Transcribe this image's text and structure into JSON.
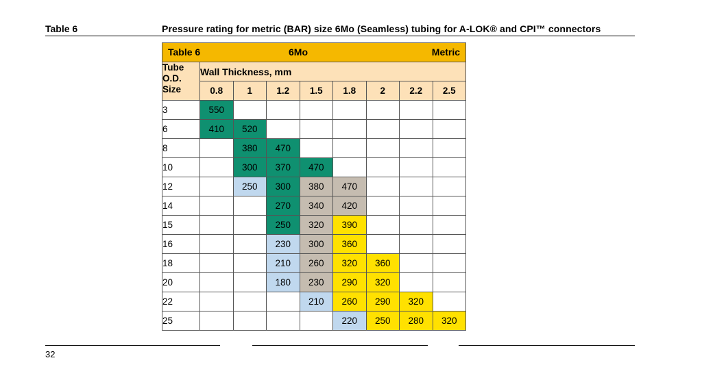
{
  "header": {
    "table_label": "Table 6",
    "title": "Pressure rating for metric (BAR) size 6Mo (Seamless) tubing for A-LOK® and CPI™ connectors"
  },
  "table": {
    "header_left": "Table 6",
    "header_mid": "6Mo",
    "header_right": "Metric",
    "row_header": "Tube O.D. Size",
    "wall_title": "Wall Thickness, mm",
    "wall_thicknesses": [
      "0.8",
      "1",
      "1.2",
      "1.5",
      "1.8",
      "2",
      "2.2",
      "2.5"
    ],
    "colors": {
      "header": "#f5b800",
      "peach": "#fde1b8",
      "green": "#0f9070",
      "blue": "#c0d8ee",
      "gray": "#c5bcb0",
      "yellow": "#ffe100"
    },
    "rows": [
      {
        "size": "3",
        "cells": [
          {
            "v": "550",
            "c": "green"
          },
          {
            "v": "",
            "c": ""
          },
          {
            "v": "",
            "c": ""
          },
          {
            "v": "",
            "c": ""
          },
          {
            "v": "",
            "c": ""
          },
          {
            "v": "",
            "c": ""
          },
          {
            "v": "",
            "c": ""
          },
          {
            "v": "",
            "c": ""
          }
        ]
      },
      {
        "size": "6",
        "cells": [
          {
            "v": "410",
            "c": "green"
          },
          {
            "v": "520",
            "c": "green"
          },
          {
            "v": "",
            "c": ""
          },
          {
            "v": "",
            "c": ""
          },
          {
            "v": "",
            "c": ""
          },
          {
            "v": "",
            "c": ""
          },
          {
            "v": "",
            "c": ""
          },
          {
            "v": "",
            "c": ""
          }
        ]
      },
      {
        "size": "8",
        "cells": [
          {
            "v": "",
            "c": ""
          },
          {
            "v": "380",
            "c": "green"
          },
          {
            "v": "470",
            "c": "green"
          },
          {
            "v": "",
            "c": ""
          },
          {
            "v": "",
            "c": ""
          },
          {
            "v": "",
            "c": ""
          },
          {
            "v": "",
            "c": ""
          },
          {
            "v": "",
            "c": ""
          }
        ]
      },
      {
        "size": "10",
        "cells": [
          {
            "v": "",
            "c": ""
          },
          {
            "v": "300",
            "c": "green"
          },
          {
            "v": "370",
            "c": "green"
          },
          {
            "v": "470",
            "c": "green"
          },
          {
            "v": "",
            "c": ""
          },
          {
            "v": "",
            "c": ""
          },
          {
            "v": "",
            "c": ""
          },
          {
            "v": "",
            "c": ""
          }
        ]
      },
      {
        "size": "12",
        "cells": [
          {
            "v": "",
            "c": ""
          },
          {
            "v": "250",
            "c": "blue"
          },
          {
            "v": "300",
            "c": "green"
          },
          {
            "v": "380",
            "c": "gray"
          },
          {
            "v": "470",
            "c": "gray"
          },
          {
            "v": "",
            "c": ""
          },
          {
            "v": "",
            "c": ""
          },
          {
            "v": "",
            "c": ""
          }
        ]
      },
      {
        "size": "14",
        "cells": [
          {
            "v": "",
            "c": ""
          },
          {
            "v": "",
            "c": ""
          },
          {
            "v": "270",
            "c": "green"
          },
          {
            "v": "340",
            "c": "gray"
          },
          {
            "v": "420",
            "c": "gray"
          },
          {
            "v": "",
            "c": ""
          },
          {
            "v": "",
            "c": ""
          },
          {
            "v": "",
            "c": ""
          }
        ]
      },
      {
        "size": "15",
        "cells": [
          {
            "v": "",
            "c": ""
          },
          {
            "v": "",
            "c": ""
          },
          {
            "v": "250",
            "c": "green"
          },
          {
            "v": "320",
            "c": "gray"
          },
          {
            "v": "390",
            "c": "yellow"
          },
          {
            "v": "",
            "c": ""
          },
          {
            "v": "",
            "c": ""
          },
          {
            "v": "",
            "c": ""
          }
        ]
      },
      {
        "size": "16",
        "cells": [
          {
            "v": "",
            "c": ""
          },
          {
            "v": "",
            "c": ""
          },
          {
            "v": "230",
            "c": "blue"
          },
          {
            "v": "300",
            "c": "gray"
          },
          {
            "v": "360",
            "c": "yellow"
          },
          {
            "v": "",
            "c": ""
          },
          {
            "v": "",
            "c": ""
          },
          {
            "v": "",
            "c": ""
          }
        ]
      },
      {
        "size": "18",
        "cells": [
          {
            "v": "",
            "c": ""
          },
          {
            "v": "",
            "c": ""
          },
          {
            "v": "210",
            "c": "blue"
          },
          {
            "v": "260",
            "c": "gray"
          },
          {
            "v": "320",
            "c": "yellow"
          },
          {
            "v": "360",
            "c": "yellow"
          },
          {
            "v": "",
            "c": ""
          },
          {
            "v": "",
            "c": ""
          }
        ]
      },
      {
        "size": "20",
        "cells": [
          {
            "v": "",
            "c": ""
          },
          {
            "v": "",
            "c": ""
          },
          {
            "v": "180",
            "c": "blue"
          },
          {
            "v": "230",
            "c": "gray"
          },
          {
            "v": "290",
            "c": "yellow"
          },
          {
            "v": "320",
            "c": "yellow"
          },
          {
            "v": "",
            "c": ""
          },
          {
            "v": "",
            "c": ""
          }
        ]
      },
      {
        "size": "22",
        "cells": [
          {
            "v": "",
            "c": ""
          },
          {
            "v": "",
            "c": ""
          },
          {
            "v": "",
            "c": ""
          },
          {
            "v": "210",
            "c": "blue"
          },
          {
            "v": "260",
            "c": "yellow"
          },
          {
            "v": "290",
            "c": "yellow"
          },
          {
            "v": "320",
            "c": "yellow"
          },
          {
            "v": "",
            "c": ""
          }
        ]
      },
      {
        "size": "25",
        "cells": [
          {
            "v": "",
            "c": ""
          },
          {
            "v": "",
            "c": ""
          },
          {
            "v": "",
            "c": ""
          },
          {
            "v": "",
            "c": ""
          },
          {
            "v": "220",
            "c": "blue"
          },
          {
            "v": "250",
            "c": "yellow"
          },
          {
            "v": "280",
            "c": "yellow"
          },
          {
            "v": "320",
            "c": "yellow"
          }
        ]
      }
    ]
  },
  "footer": {
    "page_number": "32"
  }
}
